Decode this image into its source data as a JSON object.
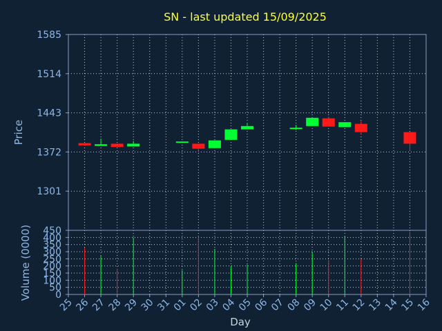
{
  "chart_data": {
    "type": "candlestick",
    "title": "SN - last updated 15/09/2025",
    "xlabel": "Day",
    "ylabel_price": "Price",
    "ylabel_volume": "Volume (0000)",
    "x_ticks": [
      "25",
      "26",
      "27",
      "28",
      "29",
      "30",
      "31",
      "01",
      "02",
      "03",
      "04",
      "05",
      "06",
      "07",
      "08",
      "09",
      "10",
      "11",
      "12",
      "13",
      "14",
      "15",
      "16"
    ],
    "price_yticks": [
      1301,
      1372,
      1443,
      1514,
      1585
    ],
    "price_ylim": [
      1230,
      1585
    ],
    "volume_yticks": [
      0,
      50,
      100,
      150,
      200,
      250,
      300,
      350,
      400,
      450
    ],
    "volume_ylim": [
      0,
      450
    ],
    "grid": true,
    "candles": [
      {
        "day": "26",
        "open": 1388,
        "high": 1388,
        "low": 1384,
        "close": 1384
      },
      {
        "day": "27",
        "open": 1383,
        "high": 1396,
        "low": 1383,
        "close": 1386
      },
      {
        "day": "28",
        "open": 1387,
        "high": 1387,
        "low": 1381,
        "close": 1381
      },
      {
        "day": "29",
        "open": 1382,
        "high": 1392,
        "low": 1382,
        "close": 1387
      },
      {
        "day": "01",
        "open": 1389,
        "high": 1391,
        "low": 1389,
        "close": 1391
      },
      {
        "day": "02",
        "open": 1387,
        "high": 1387,
        "low": 1371,
        "close": 1378
      },
      {
        "day": "03",
        "open": 1379,
        "high": 1393,
        "low": 1379,
        "close": 1393
      },
      {
        "day": "04",
        "open": 1394,
        "high": 1413,
        "low": 1394,
        "close": 1413
      },
      {
        "day": "05",
        "open": 1413,
        "high": 1425,
        "low": 1413,
        "close": 1419
      },
      {
        "day": "08",
        "open": 1416,
        "high": 1421,
        "low": 1412,
        "close": 1416
      },
      {
        "day": "09",
        "open": 1419,
        "high": 1434,
        "low": 1419,
        "close": 1434
      },
      {
        "day": "10",
        "open": 1433,
        "high": 1436,
        "low": 1418,
        "close": 1418
      },
      {
        "day": "11",
        "open": 1417,
        "high": 1426,
        "low": 1417,
        "close": 1426
      },
      {
        "day": "12",
        "open": 1423,
        "high": 1428,
        "low": 1404,
        "close": 1408
      },
      {
        "day": "15",
        "open": 1408,
        "high": 1408,
        "low": 1374,
        "close": 1387
      }
    ],
    "volume": [
      {
        "day": "26",
        "value": 330
      },
      {
        "day": "27",
        "value": 270
      },
      {
        "day": "28",
        "value": 180
      },
      {
        "day": "29",
        "value": 400
      },
      {
        "day": "01",
        "value": 170
      },
      {
        "day": "02",
        "value": 390
      },
      {
        "day": "03",
        "value": 320
      },
      {
        "day": "04",
        "value": 200
      },
      {
        "day": "05",
        "value": 210
      },
      {
        "day": "08",
        "value": 220
      },
      {
        "day": "09",
        "value": 300
      },
      {
        "day": "10",
        "value": 240
      },
      {
        "day": "11",
        "value": 410
      },
      {
        "day": "12",
        "value": 250
      },
      {
        "day": "15",
        "value": 440
      }
    ],
    "colors": {
      "background": "#0f2133",
      "axis": "#8aa0c0",
      "grid": "#c8d0dc",
      "title": "#ffff33",
      "tick": "#8fb8e8",
      "up": "#00ff33",
      "down": "#ff1a1a"
    }
  }
}
